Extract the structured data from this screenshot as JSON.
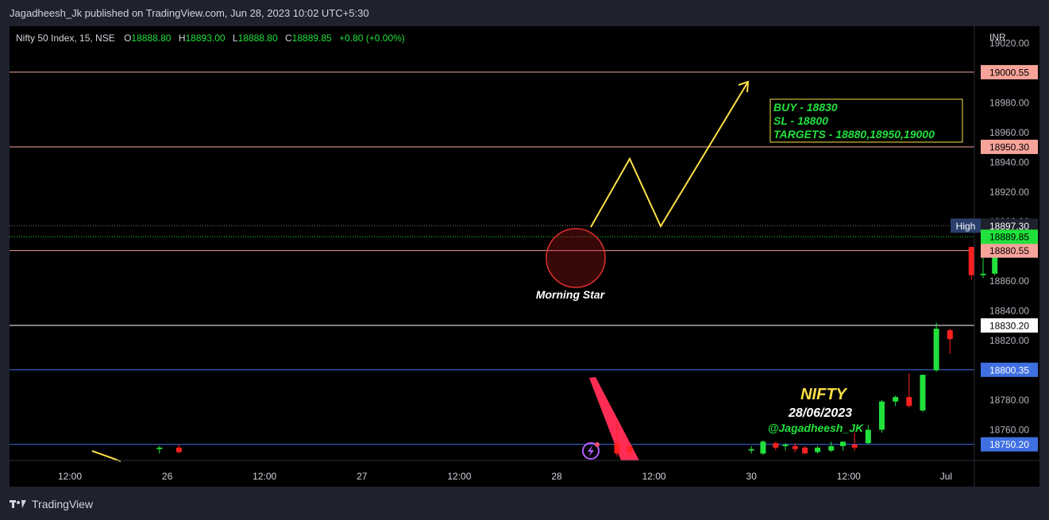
{
  "header": {
    "publisher_line": "Jagadheesh_Jk published on TradingView.com, Jun 28, 2023 10:02 UTC+5:30"
  },
  "legend": {
    "symbol": "Nifty 50 Index, 15, NSE",
    "open_label": "O",
    "open": "18888.80",
    "high_label": "H",
    "high": "18893.00",
    "low_label": "L",
    "low": "18888.80",
    "close_label": "C",
    "close": "18889.85",
    "change": "+0.80 (+0.00%)"
  },
  "footer": {
    "brand": "TradingView"
  },
  "colors": {
    "up": "#22e03c",
    "down": "#ff2020",
    "resistance": "#f7a39a",
    "support": "#3f6fe0",
    "entry": "#ffffff",
    "arrow": "#fde047",
    "accent_green": "#22e03c"
  },
  "chart_data": {
    "type": "candlestick",
    "currency": "INR",
    "y_axis": {
      "min": 18740,
      "max": 19025,
      "ticks": [
        19020,
        19000,
        18980,
        18960,
        18940,
        18920,
        18900,
        18880,
        18860,
        18840,
        18820,
        18800,
        18780,
        18760
      ]
    },
    "x_axis": {
      "labels": [
        "12:00",
        "26",
        "12:00",
        "27",
        "12:00",
        "28",
        "12:00",
        "30",
        "12:00",
        "Jul"
      ]
    },
    "horizontal_levels": [
      {
        "value": 19000.55,
        "label": "19000.55",
        "kind": "resistance"
      },
      {
        "value": 18950.3,
        "label": "18950.30",
        "kind": "resistance"
      },
      {
        "value": 18880.55,
        "label": "18880.55",
        "kind": "resistance"
      },
      {
        "value": 18830.2,
        "label": "18830.20",
        "kind": "entry"
      },
      {
        "value": 18800.35,
        "label": "18800.35",
        "kind": "support"
      },
      {
        "value": 18750.2,
        "label": "18750.20",
        "kind": "support"
      }
    ],
    "price_tags": {
      "high_label": "High",
      "high_value": "18897.30",
      "last_value": "18889.85"
    },
    "candles": [
      {
        "t": 0.92,
        "o": 18747,
        "h": 18749,
        "l": 18744,
        "c": 18748
      },
      {
        "t": 1.12,
        "o": 18748,
        "h": 18750,
        "l": 18744,
        "c": 18745
      },
      {
        "t": 5.62,
        "o": 18751,
        "h": 18764,
        "l": 18742,
        "c": 18744
      },
      {
        "t": 5.75,
        "o": 18749,
        "h": 18749,
        "l": 18742,
        "c": 18745
      },
      {
        "t": 7.0,
        "o": 18746,
        "h": 18749,
        "l": 18744,
        "c": 18747
      },
      {
        "t": 7.12,
        "o": 18744,
        "h": 18753,
        "l": 18743,
        "c": 18752
      },
      {
        "t": 7.25,
        "o": 18751,
        "h": 18752,
        "l": 18746,
        "c": 18748
      },
      {
        "t": 7.35,
        "o": 18749,
        "h": 18751,
        "l": 18746,
        "c": 18750
      },
      {
        "t": 7.45,
        "o": 18749,
        "h": 18751,
        "l": 18745,
        "c": 18747
      },
      {
        "t": 7.55,
        "o": 18748,
        "h": 18749,
        "l": 18744,
        "c": 18744
      },
      {
        "t": 7.68,
        "o": 18745,
        "h": 18749,
        "l": 18744,
        "c": 18748
      },
      {
        "t": 7.82,
        "o": 18746,
        "h": 18752,
        "l": 18745,
        "c": 18749
      },
      {
        "t": 7.94,
        "o": 18749,
        "h": 18752,
        "l": 18746,
        "c": 18752
      },
      {
        "t": 8.06,
        "o": 18750,
        "h": 18758,
        "l": 18746,
        "c": 18748
      },
      {
        "t": 8.2,
        "o": 18751,
        "h": 18763,
        "l": 18750,
        "c": 18760
      },
      {
        "t": 8.34,
        "o": 18760,
        "h": 18780,
        "l": 18758,
        "c": 18779
      },
      {
        "t": 8.48,
        "o": 18779,
        "h": 18783,
        "l": 18776,
        "c": 18782
      },
      {
        "t": 8.62,
        "o": 18782,
        "h": 18798,
        "l": 18775,
        "c": 18776
      },
      {
        "t": 8.76,
        "o": 18773,
        "h": 18797,
        "l": 18772,
        "c": 18797
      },
      {
        "t": 8.9,
        "o": 18800,
        "h": 18832,
        "l": 18799,
        "c": 18828
      },
      {
        "t": 9.04,
        "o": 18827,
        "h": 18828,
        "l": 18811,
        "c": 18821
      },
      {
        "t": 9.26,
        "o": 18883,
        "h": 18883,
        "l": 18861,
        "c": 18864
      },
      {
        "t": 9.38,
        "o": 18864,
        "h": 18888,
        "l": 18862,
        "c": 18865
      },
      {
        "t": 9.5,
        "o": 18865,
        "h": 18893,
        "l": 18864,
        "c": 18886
      },
      {
        "t": 9.62,
        "o": 18888.8,
        "h": 18893.0,
        "l": 18888.8,
        "c": 18889.85
      }
    ],
    "annotations": {
      "pattern_label": "Morning Star",
      "trade_box": [
        "BUY - 18830",
        "SL - 18800",
        "TARGETS - 18880,18950,19000"
      ],
      "title": "NIFTY",
      "date": "28/06/2023",
      "handle": "@Jagadheesh_JK"
    }
  }
}
